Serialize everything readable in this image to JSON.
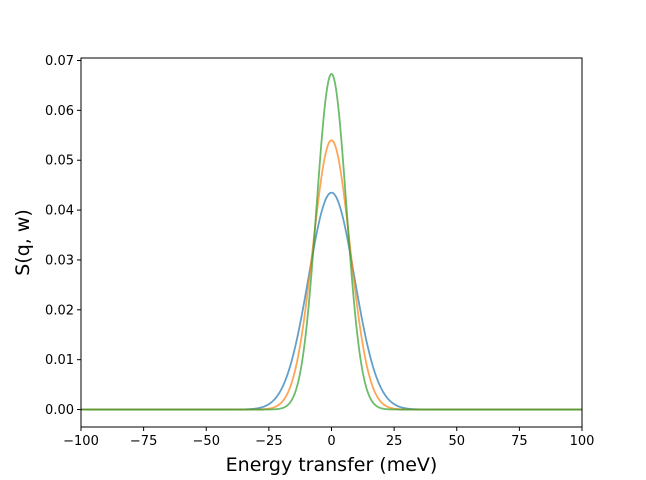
{
  "chart_data": {
    "type": "line",
    "title": "",
    "xlabel": "Energy transfer (meV)",
    "ylabel": "S(q, w)",
    "xlim": [
      -100,
      100
    ],
    "ylim": [
      -0.0035,
      0.0705
    ],
    "xticks": [
      -100,
      -75,
      -50,
      -25,
      0,
      25,
      50,
      75,
      100
    ],
    "xtick_labels": [
      "−100",
      "−75",
      "−50",
      "−25",
      "0",
      "25",
      "50",
      "75",
      "100"
    ],
    "yticks": [
      0.0,
      0.01,
      0.02,
      0.03,
      0.04,
      0.05,
      0.06,
      0.07
    ],
    "ytick_labels": [
      "0.00",
      "0.01",
      "0.02",
      "0.03",
      "0.04",
      "0.05",
      "0.06",
      "0.07"
    ],
    "grid": false,
    "series": [
      {
        "color": "#1f77b4",
        "shape": "gaussian",
        "peak_x": 0,
        "peak_y": 0.0435,
        "sigma_meV": 9.2
      },
      {
        "color": "#ff7f0e",
        "shape": "gaussian",
        "peak_x": 0,
        "peak_y": 0.054,
        "sigma_meV": 7.4
      },
      {
        "color": "#2ca02c",
        "shape": "gaussian",
        "peak_x": 0,
        "peak_y": 0.0673,
        "sigma_meV": 5.95
      }
    ]
  }
}
